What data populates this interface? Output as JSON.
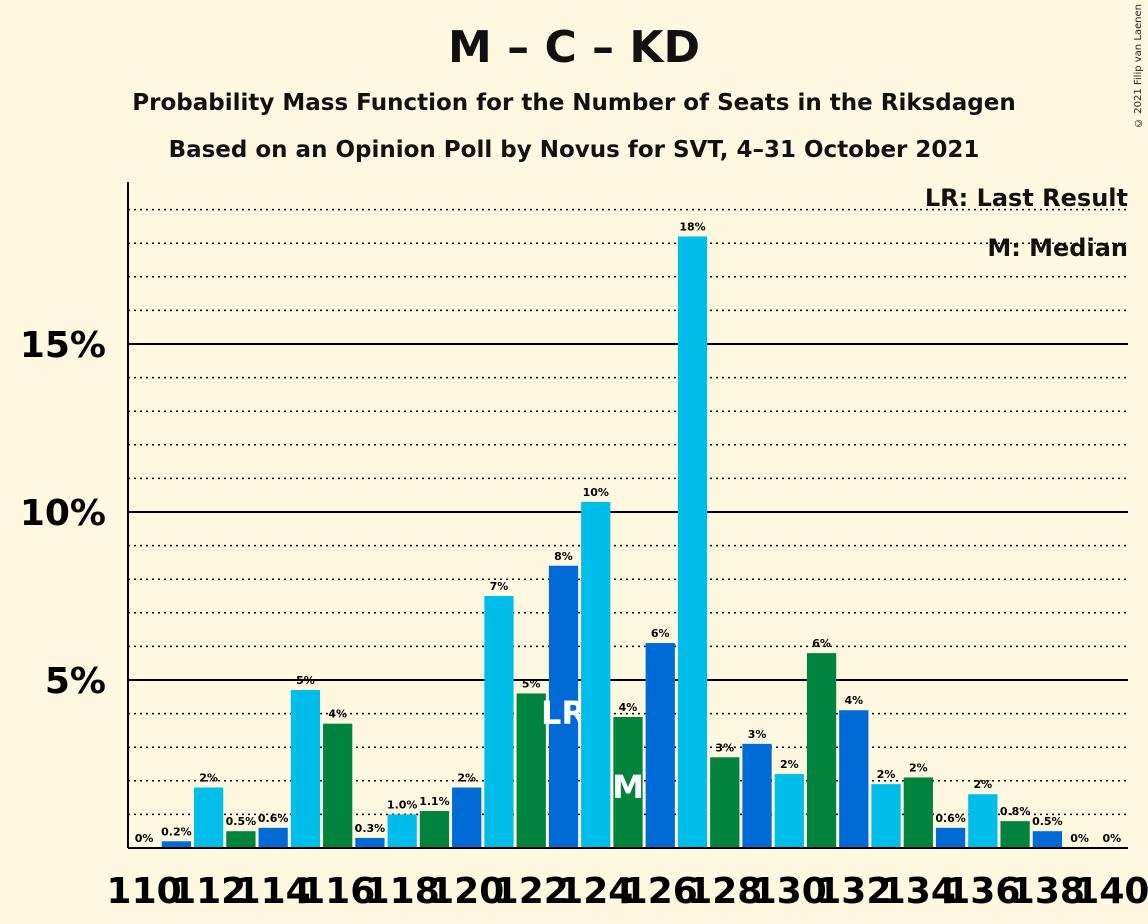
{
  "header": {
    "title": "M – C – KD",
    "subtitle1": "Probability Mass Function for the Number of Seats in the Riksdagen",
    "subtitle2": "Based on an Opinion Poll by Novus for SVT, 4–31 October 2021",
    "copyright": "© 2021 Filip van Laenen"
  },
  "legend": {
    "last_result": "LR: Last Result",
    "median": "M: Median"
  },
  "chart_data": {
    "type": "bar",
    "title": "M – C – KD",
    "x": [
      110,
      111,
      112,
      113,
      114,
      115,
      116,
      117,
      118,
      119,
      120,
      121,
      122,
      123,
      124,
      125,
      126,
      127,
      128,
      129,
      130,
      131,
      132,
      133,
      134,
      135,
      136,
      137,
      138,
      139,
      140
    ],
    "values": [
      0,
      0.2,
      1.8,
      0.5,
      0.6,
      4.7,
      3.7,
      0.3,
      1.0,
      1.1,
      1.8,
      7.5,
      4.6,
      8.4,
      10.3,
      3.9,
      6.1,
      18.2,
      2.7,
      3.1,
      2.2,
      5.8,
      4.1,
      1.9,
      2.1,
      0.6,
      1.6,
      0.8,
      0.5,
      0,
      0
    ],
    "labels": [
      "0%",
      "0.2%",
      "2%",
      "0.5%",
      "0.6%",
      "5%",
      "4%",
      "0.3%",
      "1.0%",
      "1.1%",
      "2%",
      "7%",
      "5%",
      "8%",
      "10%",
      "4%",
      "6%",
      "18%",
      "3%",
      "3%",
      "2%",
      "6%",
      "4%",
      "2%",
      "2%",
      "0.6%",
      "2%",
      "0.8%",
      "0.5%",
      "0%",
      "0%"
    ],
    "x_tick_labels": [
      "110",
      "112",
      "114",
      "116",
      "118",
      "120",
      "122",
      "124",
      "126",
      "128",
      "130",
      "132",
      "134",
      "136",
      "138",
      "140"
    ],
    "y_tick_labels": [
      "5%",
      "10%",
      "15%"
    ],
    "ylim": [
      0,
      20
    ],
    "last_result": 123,
    "median": 125,
    "markers": {
      "last_result": "LR",
      "median": "M"
    },
    "colors": {
      "green": "#00843d",
      "blue": "#006ad7",
      "light_blue": "#00bdea"
    },
    "grid": "dotted every 1%, solid every 5%"
  }
}
